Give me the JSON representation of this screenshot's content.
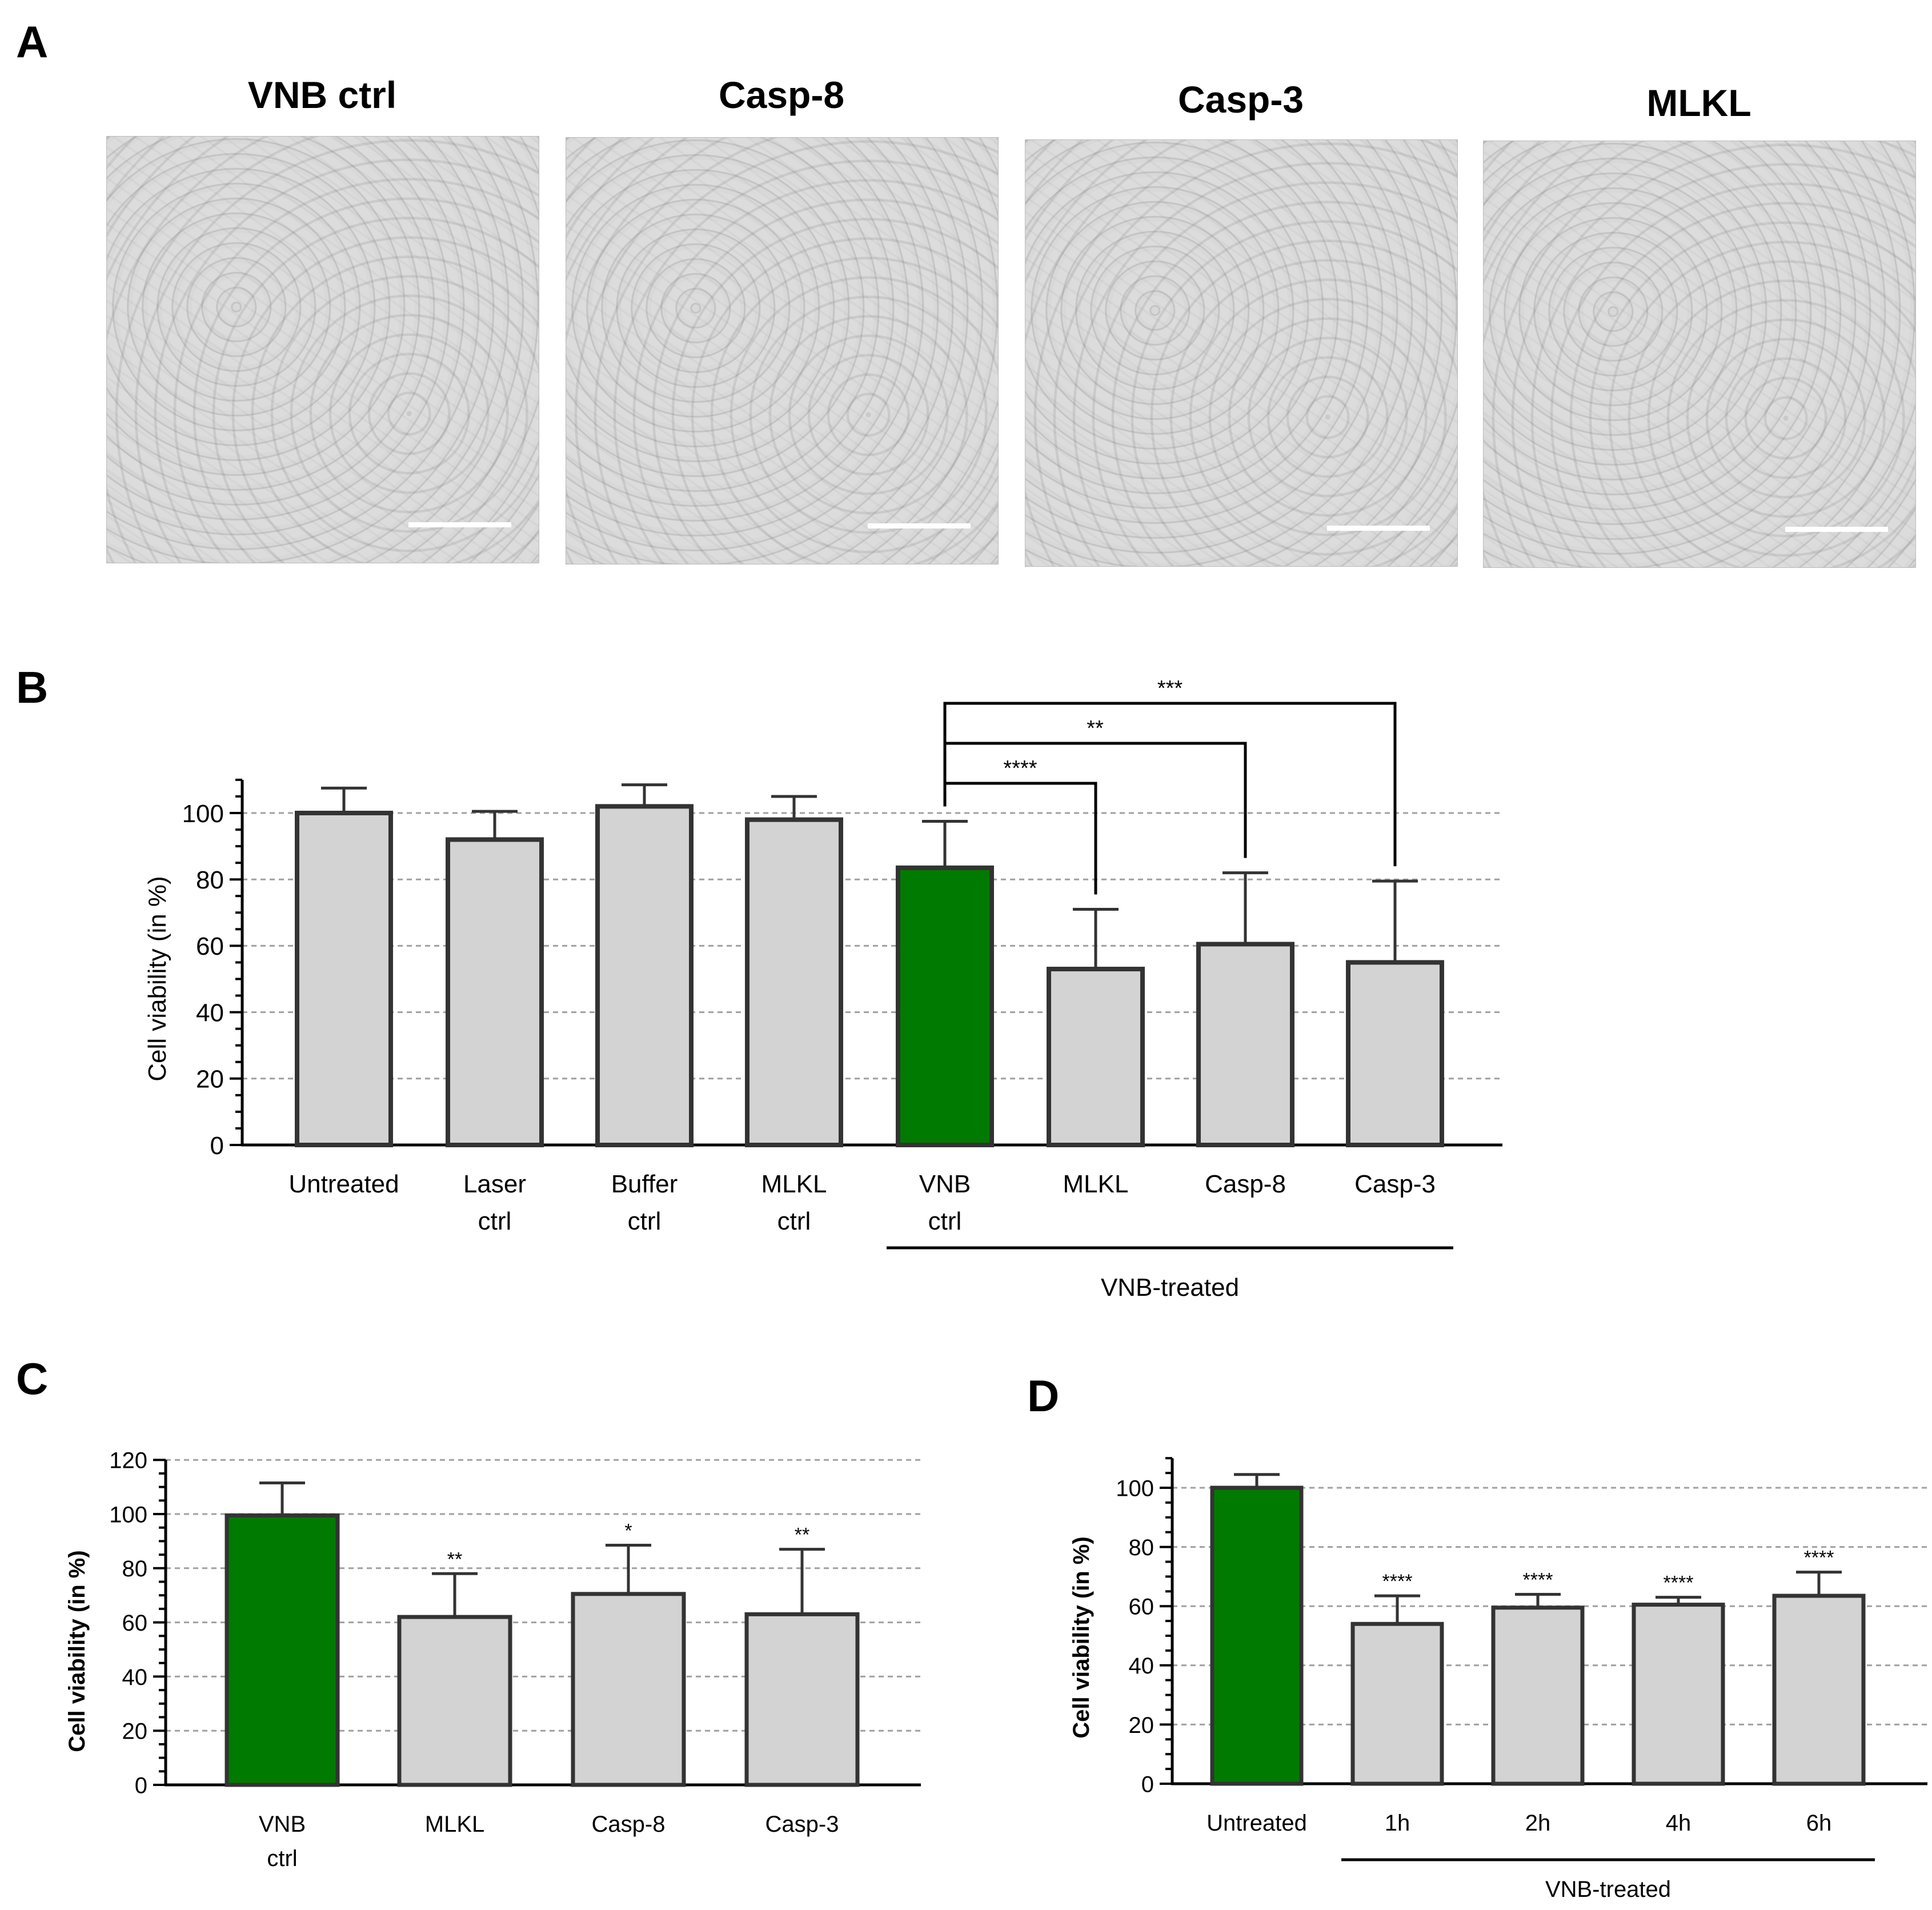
{
  "panels": {
    "a": "A",
    "b": "B",
    "c": "C",
    "d": "D"
  },
  "micrographs": [
    {
      "title": "VNB ctrl"
    },
    {
      "title": "Casp-8"
    },
    {
      "title": "Casp-3"
    },
    {
      "title": "MLKL"
    }
  ],
  "colors": {
    "green_bar": "#007A00",
    "grey_bar": "#D3D3D3",
    "outline": "#333333",
    "grid": "#A0A0A0"
  },
  "chart_data": [
    {
      "id": "B",
      "type": "bar",
      "ylabel": "Cell viability (in %)",
      "ylim": [
        0,
        110
      ],
      "yticks": [
        0,
        20,
        40,
        60,
        80,
        100
      ],
      "grid": true,
      "categories": [
        [
          "Untreated"
        ],
        [
          "Laser",
          "ctrl"
        ],
        [
          "Buffer",
          "ctrl"
        ],
        [
          "MLKL",
          "ctrl"
        ],
        [
          "VNB",
          "ctrl"
        ],
        [
          "MLKL"
        ],
        [
          "Casp-8"
        ],
        [
          "Casp-3"
        ]
      ],
      "values": [
        100,
        92,
        102,
        98,
        83.5,
        53,
        60.5,
        55
      ],
      "errors": [
        7.5,
        8.5,
        6.5,
        7,
        14,
        18,
        21.5,
        24.5
      ],
      "highlight": [
        4
      ],
      "group_label": {
        "text": "VNB-treated",
        "from": 4,
        "to": 7
      },
      "brackets": [
        {
          "from": 4,
          "to": 5,
          "label": "****"
        },
        {
          "from": 4,
          "to": 6,
          "label": "**"
        },
        {
          "from": 4,
          "to": 7,
          "label": "***"
        }
      ]
    },
    {
      "id": "C",
      "type": "bar",
      "ylabel": "Cell viability (in %)",
      "ylim": [
        0,
        120
      ],
      "yticks": [
        0,
        20,
        40,
        60,
        80,
        100,
        120
      ],
      "grid": true,
      "categories": [
        [
          "VNB",
          "ctrl"
        ],
        [
          "MLKL"
        ],
        [
          "Casp-8"
        ],
        [
          "Casp-3"
        ]
      ],
      "values": [
        99.5,
        62,
        70.5,
        63
      ],
      "errors": [
        12,
        16,
        18,
        24
      ],
      "highlight": [
        0
      ],
      "significance": [
        "",
        "**",
        "*",
        "**"
      ]
    },
    {
      "id": "D",
      "type": "bar",
      "ylabel": "Cell viability (in %)",
      "ylim": [
        0,
        110
      ],
      "yticks": [
        0,
        20,
        40,
        60,
        80,
        100
      ],
      "grid": true,
      "categories": [
        [
          "Untreated"
        ],
        [
          "1h"
        ],
        [
          "2h"
        ],
        [
          "4h"
        ],
        [
          "6h"
        ]
      ],
      "values": [
        100,
        54,
        59.5,
        60.5,
        63.5
      ],
      "errors": [
        4.5,
        9.5,
        4.5,
        2.5,
        8
      ],
      "highlight": [
        0
      ],
      "significance": [
        "",
        "****",
        "****",
        "****",
        "****"
      ],
      "group_label": {
        "text": "VNB-treated",
        "from": 1,
        "to": 4
      }
    }
  ]
}
